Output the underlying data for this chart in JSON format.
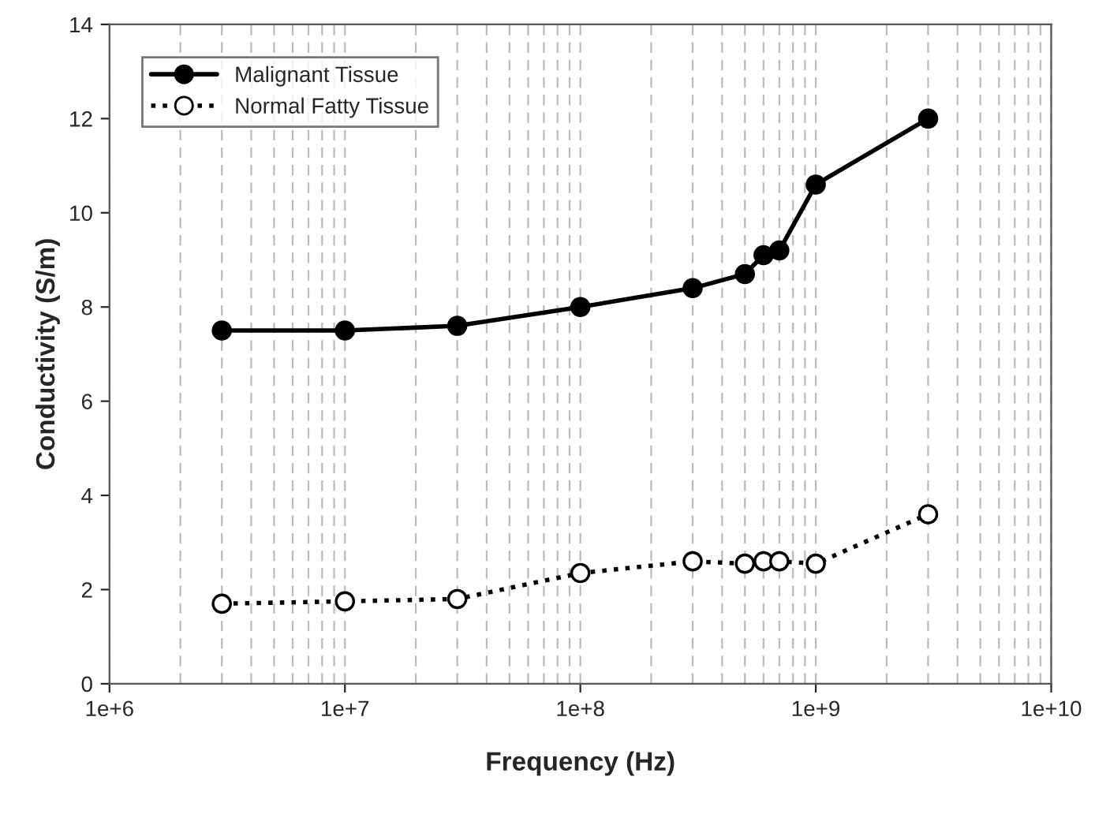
{
  "chart_data": {
    "type": "line",
    "xlabel": "Frequency (Hz)",
    "ylabel": "Conductivity (S/m)",
    "x": [
      3000000,
      10000000,
      30000000,
      100000000,
      300000000,
      500000000,
      600000000,
      700000000,
      1000000000,
      3000000000
    ],
    "series": [
      {
        "name": "Malignant Tissue",
        "color": "#000000",
        "marker": "circle",
        "line_style": "solid",
        "values": [
          7.5,
          7.5,
          7.6,
          8.0,
          8.4,
          8.7,
          9.1,
          9.2,
          10.6,
          12.0
        ]
      },
      {
        "name": "Normal Fatty Tissue",
        "color": "#000000",
        "marker": "circle",
        "line_style": "dotted",
        "values": [
          1.7,
          1.75,
          1.8,
          2.35,
          2.6,
          2.55,
          2.6,
          2.6,
          2.55,
          3.6
        ]
      }
    ],
    "log": "x",
    "xlim": [
      1000000,
      10000000000
    ],
    "xticks": [
      {
        "value": 1000000,
        "label": "1e+6"
      },
      {
        "value": 10000000,
        "label": "1e+7"
      },
      {
        "value": 100000000,
        "label": "1e+8"
      },
      {
        "value": 1000000000,
        "label": "1e+9"
      },
      {
        "value": 10000000000,
        "label": "1e+10"
      }
    ],
    "ylim": [
      0,
      14
    ],
    "yticks": [
      0,
      2,
      4,
      6,
      8,
      10,
      12,
      14
    ],
    "grid": "x",
    "legend": "top left"
  }
}
